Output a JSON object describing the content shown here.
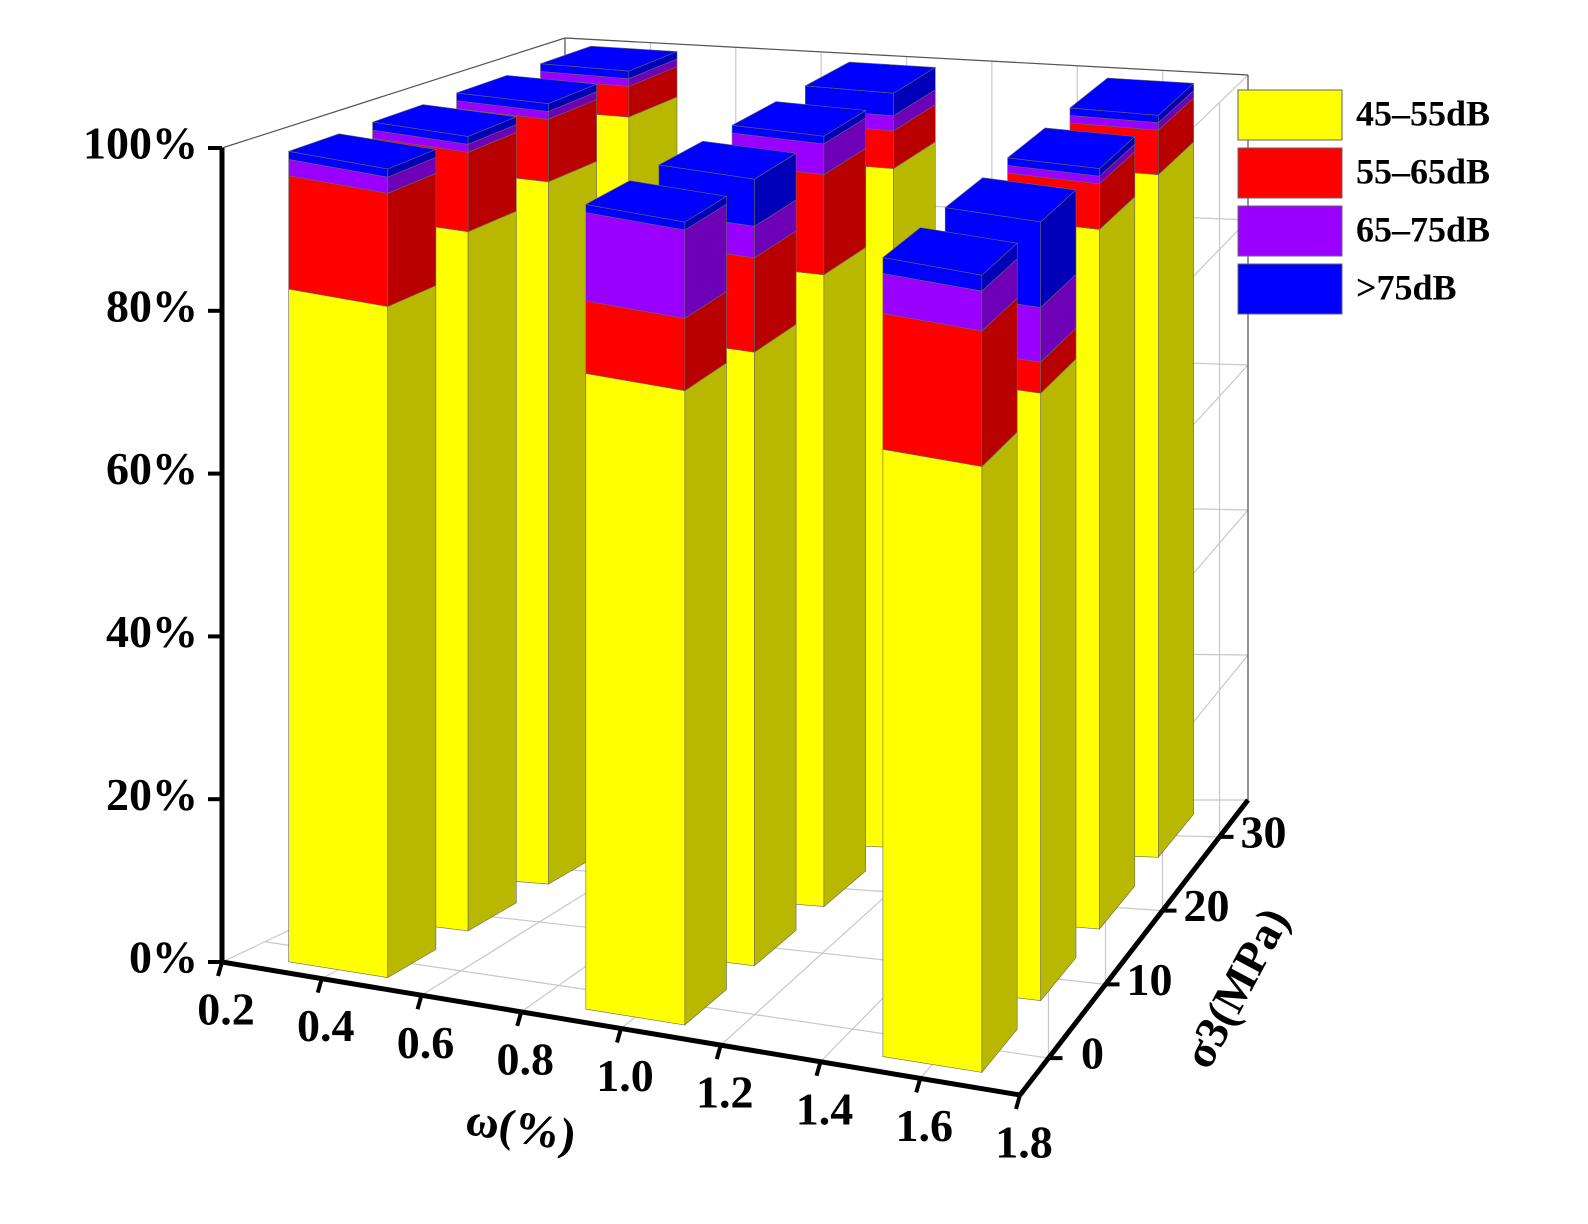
{
  "chart_data": {
    "type": "bar3d",
    "x_label": "ω(%)",
    "z_label": "σ3(MPa)",
    "x": [
      0.4,
      1.0,
      1.6,
      0.4,
      1.0,
      1.6,
      0.4,
      1.0,
      1.6,
      0.4,
      1.0,
      1.6
    ],
    "z": [
      0,
      0,
      0,
      10,
      10,
      10,
      20,
      20,
      20,
      30,
      30,
      30
    ],
    "series": [
      {
        "name": "45–55dB",
        "color": "#ffff00",
        "values": [
          83,
          79,
          76,
          88,
          78,
          78,
          90,
          82,
          92,
          94,
          90,
          92
        ]
      },
      {
        "name": "55–65dB",
        "color": "#ff0000",
        "values": [
          14,
          9,
          17,
          10,
          12,
          4,
          8,
          13,
          6,
          4,
          5,
          6
        ]
      },
      {
        "name": "65–75dB",
        "color": "#9900ff",
        "values": [
          2,
          11,
          5,
          1,
          4,
          7,
          1,
          4,
          1,
          1,
          2,
          1
        ]
      },
      {
        "name": ">75dB",
        "color": "#0000ff",
        "values": [
          1,
          1,
          2,
          1,
          6,
          11,
          1,
          1,
          1,
          1,
          3,
          1
        ]
      }
    ],
    "xlim": [
      0.2,
      1.8
    ],
    "xticks": [
      0.2,
      0.4,
      0.6,
      0.8,
      {
        "value": 1,
        "label": "1.0"
      },
      1.2,
      1.4,
      1.6,
      1.8
    ],
    "ylim": [
      0,
      100
    ],
    "yticks": [
      {
        "value": 0,
        "label": "0%"
      },
      {
        "value": 20,
        "label": "20%"
      },
      {
        "value": 40,
        "label": "40%"
      },
      {
        "value": 60,
        "label": "60%"
      },
      {
        "value": 80,
        "label": "80%"
      },
      {
        "value": 100,
        "label": "100%"
      }
    ],
    "zlim": [
      -5,
      35
    ],
    "zticks": [
      0,
      10,
      20,
      30
    ],
    "grid": true,
    "legend": "upper right"
  }
}
